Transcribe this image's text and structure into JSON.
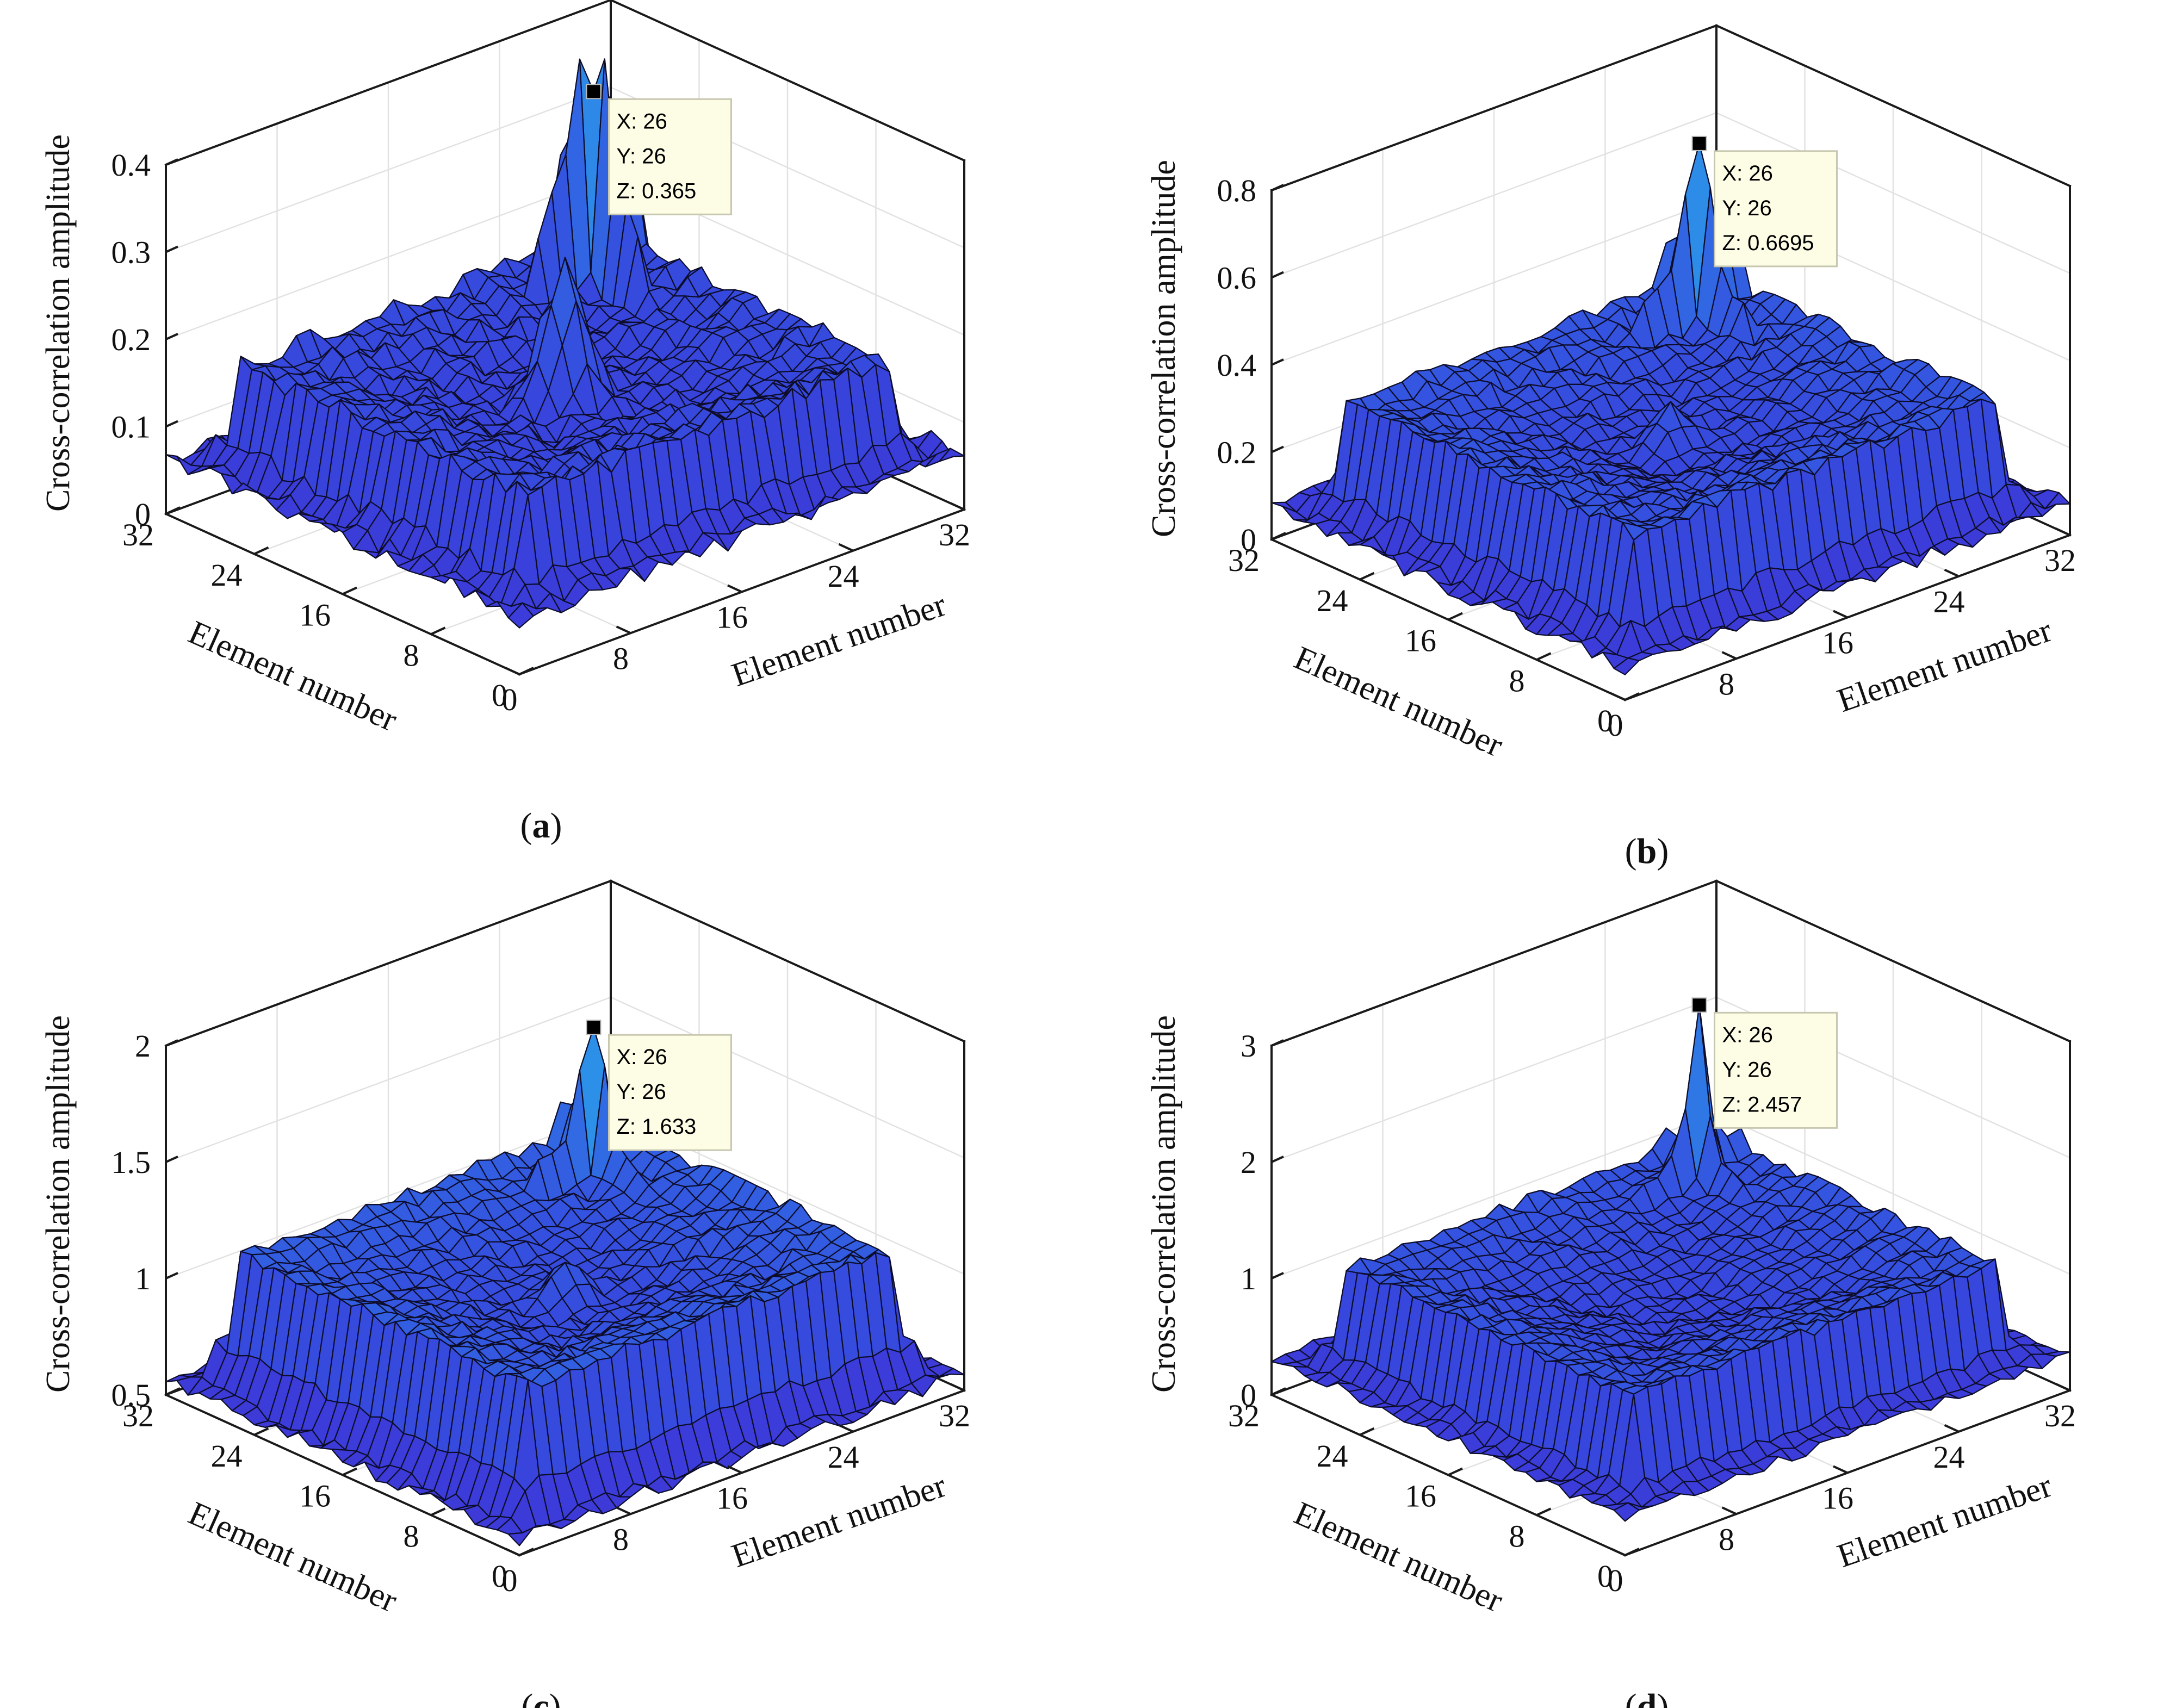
{
  "figure": {
    "panels": [
      {
        "id": "a",
        "caption": {
          "open": "(",
          "letter": "a",
          "close": ")"
        },
        "datatip": {
          "x": "X: 26",
          "y": "Y: 26",
          "z": "Z: 0.365"
        }
      },
      {
        "id": "b",
        "caption": {
          "open": "(",
          "letter": "b",
          "close": ")"
        },
        "datatip": {
          "x": "X: 26",
          "y": "Y: 26",
          "z": "Z: 0.6695"
        }
      },
      {
        "id": "c",
        "caption": {
          "open": "(",
          "letter": "c",
          "close": ")"
        },
        "datatip": {
          "x": "X: 26",
          "y": "Y: 26",
          "z": "Z: 1.633"
        }
      },
      {
        "id": "d",
        "caption": {
          "open": "(",
          "letter": "d",
          "close": ")"
        },
        "datatip": {
          "x": "X: 26",
          "y": "Y: 26",
          "z": "Z: 2.457"
        }
      }
    ]
  },
  "chart_data": [
    {
      "type": "surface",
      "panel": "a",
      "title": "",
      "xlabel": "Element number",
      "ylabel": "Element number",
      "zlabel": "Cross-correlation amplitude",
      "xlim": [
        0,
        32
      ],
      "ylim": [
        0,
        32
      ],
      "zlim": [
        0,
        0.4
      ],
      "xticks": [
        "0",
        "8",
        "16",
        "24",
        "32"
      ],
      "yticks": [
        "0",
        "8",
        "16",
        "24",
        "32"
      ],
      "zticks": [
        "0",
        "0.1",
        "0.2",
        "0.3",
        "0.4"
      ],
      "zticks_values": [
        0,
        0.1,
        0.2,
        0.3,
        0.4
      ],
      "grid": true,
      "surface": {
        "base": 0.04,
        "ridge": 0.13,
        "rim": 0.04,
        "secondary": 0.21,
        "center": 0.18,
        "noise": 0.012
      },
      "peak": {
        "x": 26,
        "y": 26,
        "z": 0.365
      }
    },
    {
      "type": "surface",
      "panel": "b",
      "title": "",
      "xlabel": "Element number",
      "ylabel": "Element number",
      "zlabel": "Cross-correlation amplitude",
      "xlim": [
        0,
        32
      ],
      "ylim": [
        0,
        32
      ],
      "zlim": [
        0,
        0.8
      ],
      "xticks": [
        "0",
        "8",
        "16",
        "24",
        "32"
      ],
      "yticks": [
        "0",
        "8",
        "16",
        "24",
        "32"
      ],
      "zticks": [
        "0",
        "0.2",
        "0.4",
        "0.6",
        "0.8"
      ],
      "zticks_values": [
        0,
        0.2,
        0.4,
        0.6,
        0.8
      ],
      "grid": true,
      "surface": {
        "base": 0.03,
        "ridge": 0.28,
        "rim": 0.07,
        "secondary": 0.17,
        "center": 0.12,
        "noise": 0.018
      },
      "peak": {
        "x": 26,
        "y": 26,
        "z": 0.6695
      }
    },
    {
      "type": "surface",
      "panel": "c",
      "title": "",
      "xlabel": "Element number",
      "ylabel": "Element number",
      "zlabel": "Cross-correlation amplitude",
      "xlim": [
        0,
        32
      ],
      "ylim": [
        0,
        32
      ],
      "zlim": [
        0.5,
        2
      ],
      "xticks": [
        "0",
        "8",
        "16",
        "24",
        "32"
      ],
      "yticks": [
        "0",
        "8",
        "16",
        "24",
        "32"
      ],
      "zticks": [
        "0.5",
        "1",
        "1.5",
        "2"
      ],
      "zticks_values": [
        0.5,
        1,
        1.5,
        2
      ],
      "grid": true,
      "surface": {
        "base": 0.52,
        "ridge": 0.58,
        "rim": 0.08,
        "secondary": 0.25,
        "center": 0.2,
        "noise": 0.03
      },
      "peak": {
        "x": 26,
        "y": 26,
        "z": 1.633
      }
    },
    {
      "type": "surface",
      "panel": "d",
      "title": "",
      "xlabel": "Element number",
      "ylabel": "Element number",
      "zlabel": "Cross-correlation amplitude",
      "xlim": [
        0,
        32
      ],
      "ylim": [
        0,
        32
      ],
      "zlim": [
        0,
        3
      ],
      "xticks": [
        "0",
        "8",
        "16",
        "24",
        "32"
      ],
      "yticks": [
        "0",
        "8",
        "16",
        "24",
        "32"
      ],
      "zticks": [
        "0",
        "1",
        "2",
        "3"
      ],
      "zticks_values": [
        0,
        1,
        2,
        3
      ],
      "grid": true,
      "surface": {
        "base": 0.05,
        "ridge": 1.05,
        "rim": 0.45,
        "secondary": 0.3,
        "center": 0.08,
        "noise": 0.05
      },
      "peak": {
        "x": 26,
        "y": 26,
        "z": 2.457
      }
    }
  ]
}
